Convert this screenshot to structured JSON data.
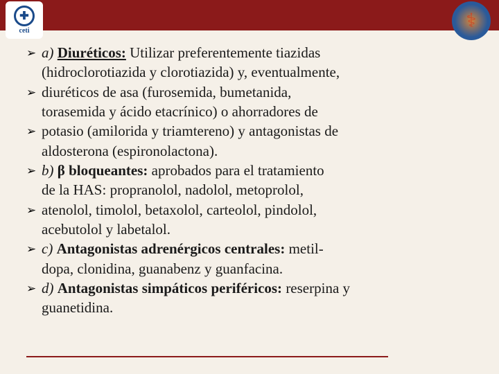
{
  "logos": {
    "left_text": "ceti",
    "left_symbol": "✚"
  },
  "colors": {
    "header": "#8b1a1a",
    "background": "#f5f0e8",
    "text": "#1a1a1a",
    "footer_line": "#8b1a1a"
  },
  "typography": {
    "body_fontsize": 21,
    "line_height": 1.35,
    "font_family": "Georgia, Times New Roman, serif"
  },
  "lines": [
    {
      "bullet": true,
      "parts": [
        {
          "t": "a)",
          "i": true
        },
        {
          "t": " "
        },
        {
          "t": "Diuréticos:",
          "b": true,
          "u": true
        },
        {
          "t": " Utilizar preferentemente tiazidas"
        }
      ]
    },
    {
      "bullet": false,
      "parts": [
        {
          "t": "(hidroclorotiazida y clorotiazida) y, eventualmente,"
        }
      ]
    },
    {
      "bullet": true,
      "parts": [
        {
          "t": "diuréticos de asa (furosemida, bumetanida,"
        }
      ]
    },
    {
      "bullet": false,
      "parts": [
        {
          "t": "torasemida y ácido etacrínico) o ahorradores de"
        }
      ]
    },
    {
      "bullet": true,
      "parts": [
        {
          "t": "potasio (amilorida y triamtereno) y antagonistas de"
        }
      ]
    },
    {
      "bullet": false,
      "parts": [
        {
          "t": "aldosterona (espironolactona)."
        }
      ]
    },
    {
      "bullet": true,
      "parts": [
        {
          "t": "b)",
          "i": true
        },
        {
          "t": " "
        },
        {
          "t": "β bloqueantes:",
          "b": true
        },
        {
          "t": " aprobados para el tratamiento"
        }
      ]
    },
    {
      "bullet": false,
      "parts": [
        {
          "t": "de la HAS: propranolol, nadolol, metoprolol,"
        }
      ]
    },
    {
      "bullet": true,
      "parts": [
        {
          "t": "atenolol, timolol, betaxolol, carteolol, pindolol,"
        }
      ]
    },
    {
      "bullet": false,
      "parts": [
        {
          "t": "acebutolol y labetalol."
        }
      ]
    },
    {
      "bullet": true,
      "parts": [
        {
          "t": "c)",
          "i": true
        },
        {
          "t": " "
        },
        {
          "t": "Antagonistas adrenérgicos centrales:",
          "b": true
        },
        {
          "t": " metil-"
        }
      ]
    },
    {
      "bullet": false,
      "parts": [
        {
          "t": "dopa, clonidina, guanabenz y guanfacina."
        }
      ]
    },
    {
      "bullet": true,
      "parts": [
        {
          "t": "d)",
          "i": true
        },
        {
          "t": " "
        },
        {
          "t": "Antagonistas simpáticos periféricos:",
          "b": true
        },
        {
          "t": " reserpina y"
        }
      ]
    },
    {
      "bullet": false,
      "parts": [
        {
          "t": "guanetidina."
        }
      ]
    }
  ],
  "bullet_glyph": "➢"
}
